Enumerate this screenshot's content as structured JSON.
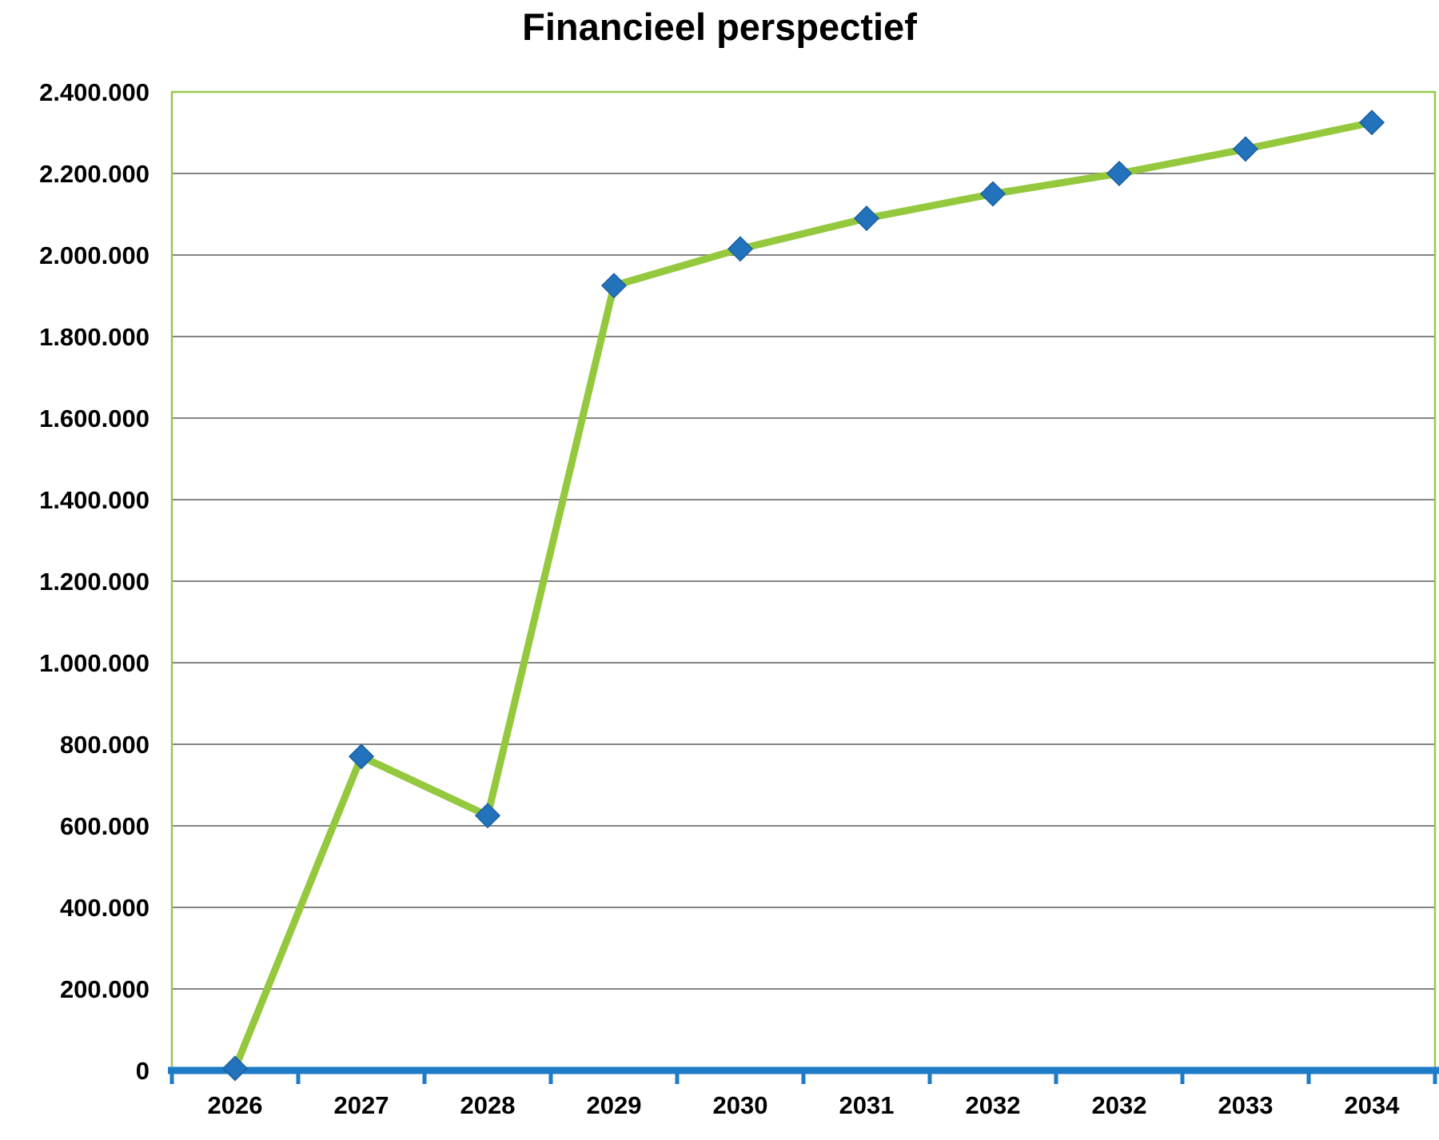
{
  "title": "Financieel perspectief",
  "chart_data": {
    "type": "line",
    "title": "Financieel perspectief",
    "categories": [
      "2026",
      "2027",
      "2028",
      "2029",
      "2030",
      "2031",
      "2032",
      "2032",
      "2033",
      "2034"
    ],
    "series": [
      {
        "name": "Financieel perspectief",
        "values": [
          5000,
          770000,
          625000,
          1925000,
          2015000,
          2090000,
          2150000,
          2200000,
          2260000,
          2325000
        ]
      }
    ],
    "xlabel": "",
    "ylabel": "",
    "ylim": [
      0,
      2400000
    ],
    "ytick_step": 200000,
    "ytick_labels": [
      "0",
      "200.000",
      "400.000",
      "600.000",
      "800.000",
      "1.000.000",
      "1.200.000",
      "1.400.000",
      "1.600.000",
      "1.800.000",
      "2.000.000",
      "2.200.000",
      "2.400.000"
    ],
    "grid": true,
    "legend_position": "none",
    "marker_shape": "diamond",
    "colors": {
      "line": "#94C83D",
      "marker": "#2273BC",
      "marker_edge": "#1B5FA0",
      "axis": "#1E7BC8",
      "gridline": "#848484",
      "plot_border": "#96C94F",
      "text": "#000000",
      "background": "#FFFFFF"
    }
  }
}
